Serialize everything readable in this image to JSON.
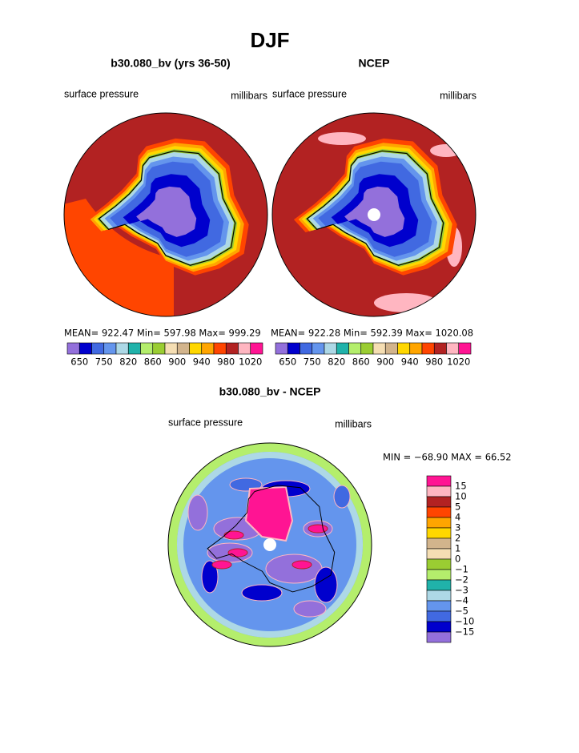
{
  "title": "DJF",
  "panels": [
    {
      "title": "b30.080_bv (yrs 36-50)",
      "left_label": "surface pressure",
      "right_label": "millibars",
      "stats": "MEAN= 922.47   Min= 597.98   Max= 999.29"
    },
    {
      "title": "NCEP",
      "left_label": "surface pressure",
      "right_label": "millibars",
      "stats": "MEAN= 922.28   Min= 592.39   Max= 1020.08"
    },
    {
      "title": "b30.080_bv - NCEP",
      "left_label": "surface pressure",
      "right_label": "millibars",
      "stats": "MIN = −68.90  MAX =  66.52"
    }
  ],
  "colorbar": {
    "colors": [
      "#9370db",
      "#0000cd",
      "#4169e1",
      "#6495ed",
      "#add8e6",
      "#20b2aa",
      "#b4ee6c",
      "#9acd32",
      "#f5deb3",
      "#d2b48c",
      "#ffd700",
      "#ffa500",
      "#ff4500",
      "#b22222",
      "#ffb6c1",
      "#ff1493"
    ],
    "labels": [
      "650",
      "750",
      "820",
      "860",
      "900",
      "940",
      "980",
      "1020"
    ]
  },
  "diff_colorbar": {
    "colors": [
      "#ff1493",
      "#ffb6c1",
      "#b22222",
      "#ff4500",
      "#ffa500",
      "#ffd700",
      "#d2b48c",
      "#f5deb3",
      "#9acd32",
      "#b4ee6c",
      "#20b2aa",
      "#add8e6",
      "#6495ed",
      "#4169e1",
      "#0000cd",
      "#9370db"
    ],
    "labels": [
      "15",
      "10",
      "5",
      "4",
      "3",
      "2",
      "1",
      "0",
      "−1",
      "−2",
      "−3",
      "−4",
      "−5",
      "−10",
      "−15"
    ]
  }
}
